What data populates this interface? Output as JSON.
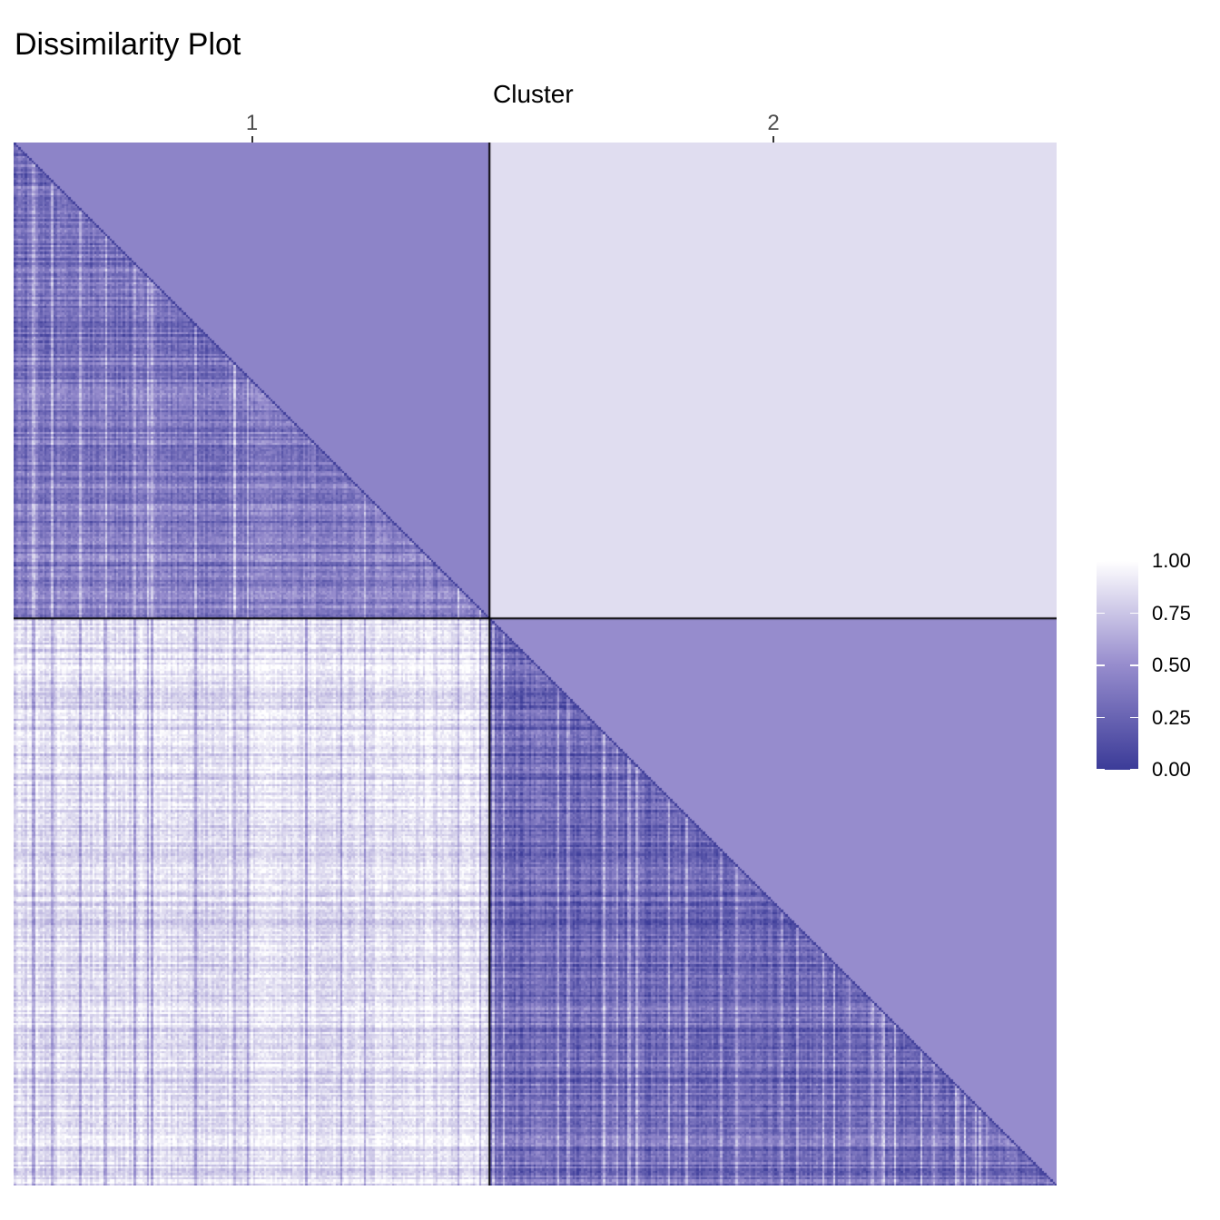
{
  "chart_data": {
    "type": "heatmap",
    "title": "Dissimilarity Plot",
    "top_axis_title": "Cluster",
    "clusters": [
      {
        "label": "1",
        "size_fraction": 0.457
      },
      {
        "label": "2",
        "size_fraction": 0.543
      }
    ],
    "upper_triangle_fill": {
      "cluster_1_within": 0.45,
      "cluster_2_within": 0.5,
      "between_clusters": 0.85
    },
    "lower_triangle_distribution": {
      "cluster_1_within_mean": 0.38,
      "cluster_2_within_mean": 0.32,
      "between_clusters_mean": 0.85
    },
    "legend": {
      "ticks": [
        {
          "value": 1.0,
          "label": "1.00"
        },
        {
          "value": 0.75,
          "label": "0.75"
        },
        {
          "value": 0.5,
          "label": "0.50"
        },
        {
          "value": 0.25,
          "label": "0.25"
        },
        {
          "value": 0.0,
          "label": "0.00"
        }
      ],
      "color_low": "#3b3b98",
      "color_high": "#ffffff",
      "placement": "right"
    },
    "separator_color": "#000000"
  }
}
